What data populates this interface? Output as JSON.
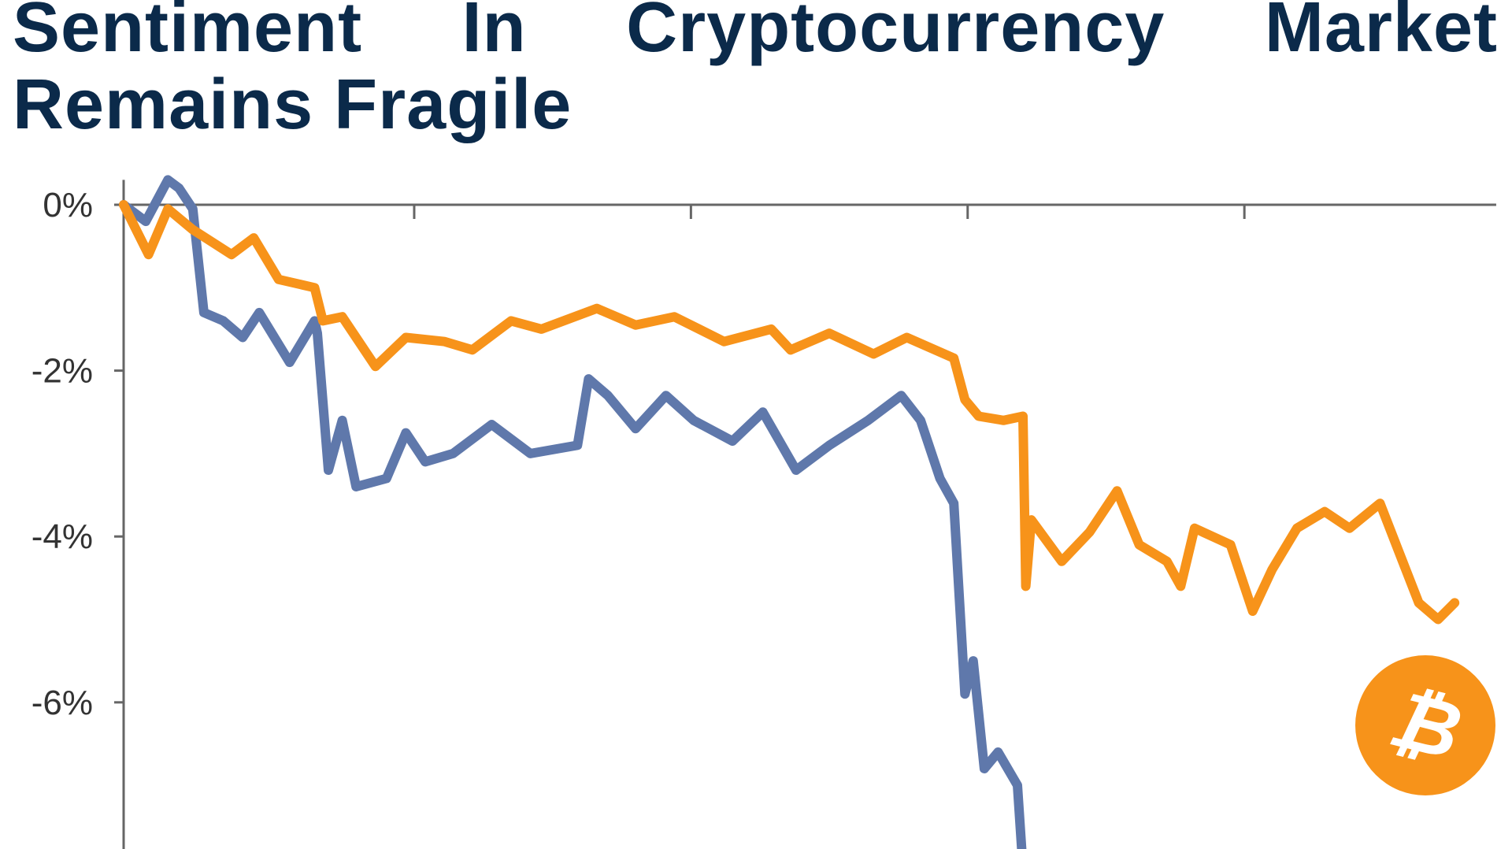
{
  "chart_data": {
    "type": "line",
    "title": "Sentiment In Cryptocurrency Market Remains Fragile",
    "xlabel": "",
    "ylabel": "",
    "xlim": [
      0,
      4.96
    ],
    "x_ticks": [
      1.05,
      2.05,
      3.05,
      4.05
    ],
    "ylim": [
      -7.8,
      0.3
    ],
    "y_ticks": [
      0,
      -2,
      -4,
      -6
    ],
    "y_tick_labels": [
      "0%",
      "-2%",
      "-4%",
      "-6%"
    ],
    "grid": false,
    "legend": "none",
    "logo": "bitcoin-logo",
    "series": [
      {
        "color": "#f7931a",
        "points": [
          [
            0,
            0
          ],
          [
            0.09,
            -0.6
          ],
          [
            0.16,
            -0.05
          ],
          [
            0.25,
            -0.3
          ],
          [
            0.39,
            -0.6
          ],
          [
            0.47,
            -0.4
          ],
          [
            0.56,
            -0.9
          ],
          [
            0.69,
            -1.0
          ],
          [
            0.72,
            -1.4
          ],
          [
            0.79,
            -1.35
          ],
          [
            0.91,
            -1.95
          ],
          [
            1.02,
            -1.6
          ],
          [
            1.16,
            -1.65
          ],
          [
            1.26,
            -1.75
          ],
          [
            1.4,
            -1.4
          ],
          [
            1.51,
            -1.5
          ],
          [
            1.71,
            -1.25
          ],
          [
            1.85,
            -1.45
          ],
          [
            1.99,
            -1.35
          ],
          [
            2.17,
            -1.65
          ],
          [
            2.34,
            -1.5
          ],
          [
            2.41,
            -1.75
          ],
          [
            2.55,
            -1.55
          ],
          [
            2.71,
            -1.8
          ],
          [
            2.83,
            -1.6
          ],
          [
            3.0,
            -1.85
          ],
          [
            3.04,
            -2.35
          ],
          [
            3.09,
            -2.55
          ],
          [
            3.18,
            -2.6
          ],
          [
            3.25,
            -2.55
          ],
          [
            3.26,
            -4.6
          ],
          [
            3.28,
            -3.8
          ],
          [
            3.39,
            -4.3
          ],
          [
            3.49,
            -3.95
          ],
          [
            3.59,
            -3.45
          ],
          [
            3.67,
            -4.1
          ],
          [
            3.77,
            -4.3
          ],
          [
            3.82,
            -4.6
          ],
          [
            3.87,
            -3.9
          ],
          [
            4.0,
            -4.1
          ],
          [
            4.08,
            -4.9
          ],
          [
            4.15,
            -4.4
          ],
          [
            4.24,
            -3.9
          ],
          [
            4.34,
            -3.7
          ],
          [
            4.43,
            -3.9
          ],
          [
            4.54,
            -3.6
          ],
          [
            4.61,
            -4.2
          ],
          [
            4.68,
            -4.8
          ],
          [
            4.75,
            -5.0
          ],
          [
            4.81,
            -4.8
          ]
        ]
      },
      {
        "color": "#5f78ab",
        "points": [
          [
            0,
            0
          ],
          [
            0.08,
            -0.2
          ],
          [
            0.16,
            0.3
          ],
          [
            0.2,
            0.2
          ],
          [
            0.25,
            -0.05
          ],
          [
            0.29,
            -1.3
          ],
          [
            0.36,
            -1.4
          ],
          [
            0.43,
            -1.6
          ],
          [
            0.49,
            -1.3
          ],
          [
            0.6,
            -1.9
          ],
          [
            0.69,
            -1.4
          ],
          [
            0.7,
            -1.55
          ],
          [
            0.74,
            -3.2
          ],
          [
            0.79,
            -2.6
          ],
          [
            0.84,
            -3.4
          ],
          [
            0.95,
            -3.3
          ],
          [
            1.02,
            -2.75
          ],
          [
            1.09,
            -3.1
          ],
          [
            1.19,
            -3.0
          ],
          [
            1.33,
            -2.65
          ],
          [
            1.47,
            -3.0
          ],
          [
            1.64,
            -2.9
          ],
          [
            1.68,
            -2.1
          ],
          [
            1.75,
            -2.3
          ],
          [
            1.85,
            -2.7
          ],
          [
            1.96,
            -2.3
          ],
          [
            2.06,
            -2.6
          ],
          [
            2.2,
            -2.85
          ],
          [
            2.31,
            -2.5
          ],
          [
            2.43,
            -3.2
          ],
          [
            2.55,
            -2.9
          ],
          [
            2.69,
            -2.6
          ],
          [
            2.81,
            -2.3
          ],
          [
            2.88,
            -2.6
          ],
          [
            2.95,
            -3.3
          ],
          [
            3.0,
            -3.6
          ],
          [
            3.04,
            -5.9
          ],
          [
            3.07,
            -5.5
          ],
          [
            3.11,
            -6.8
          ],
          [
            3.16,
            -6.6
          ],
          [
            3.23,
            -7.0
          ],
          [
            3.25,
            -8.0
          ]
        ]
      }
    ]
  }
}
